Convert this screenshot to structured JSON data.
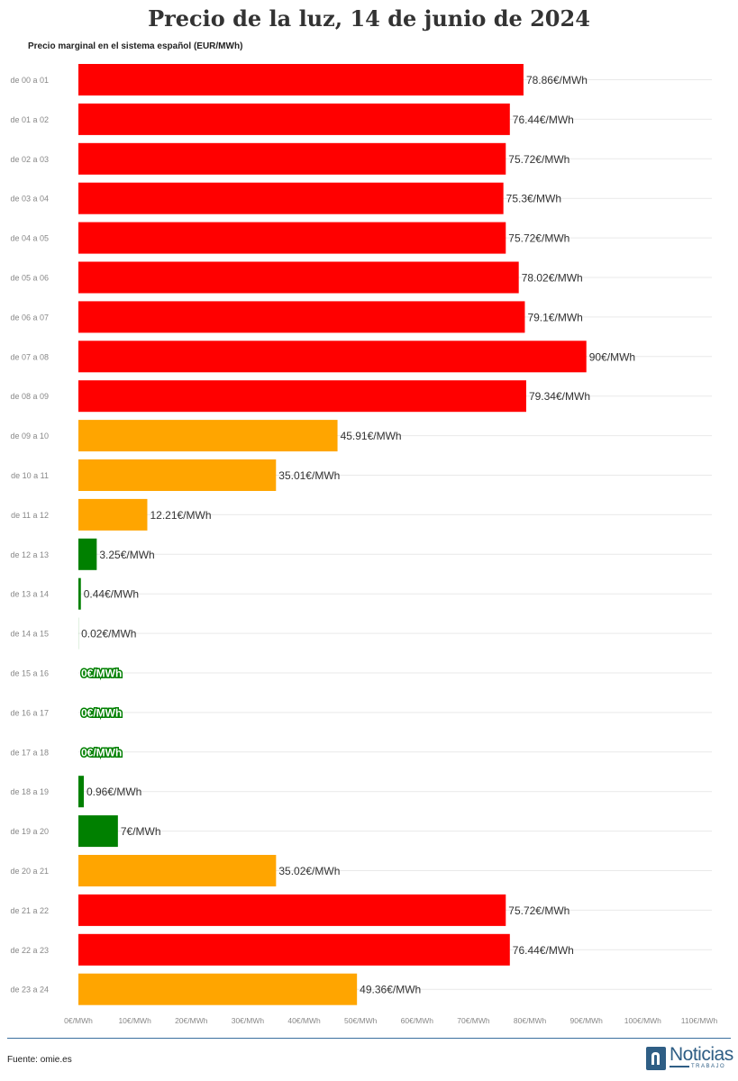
{
  "title": "Precio de la luz, 14 de junio de 2024",
  "subtitle": "Precio marginal en el sistema español (EUR/MWh)",
  "source": "Fuente: omie.es",
  "logo": {
    "word": "Noticias",
    "sub": "TRABAJO"
  },
  "colors": {
    "high": "#ff0000",
    "mid": "#ffa500",
    "low": "#008000",
    "grid": "#e9e9e9"
  },
  "chart_data": {
    "type": "bar",
    "orientation": "horizontal",
    "xlim": [
      0,
      110
    ],
    "x_ticks": [
      "0€/MWh",
      "10€/MWh",
      "20€/MWh",
      "30€/MWh",
      "40€/MWh",
      "50€/MWh",
      "60€/MWh",
      "70€/MWh",
      "80€/MWh",
      "90€/MWh",
      "100€/MWh",
      "110€/MWh"
    ],
    "grid": true,
    "categories": [
      "de 00 a 01",
      "de 01 a 02",
      "de 02 a 03",
      "de 03 a 04",
      "de 04 a 05",
      "de 05 a 06",
      "de 06 a 07",
      "de 07 a 08",
      "de 08 a 09",
      "de 09 a 10",
      "de 10 a 11",
      "de 11 a 12",
      "de 12 a 13",
      "de 13 a 14",
      "de 14 a 15",
      "de 15 a 16",
      "de 16 a 17",
      "de 17 a 18",
      "de 18 a 19",
      "de 19 a 20",
      "de 20 a 21",
      "de 21 a 22",
      "de 22 a 23",
      "de 23 a 24"
    ],
    "values": [
      78.86,
      76.44,
      75.72,
      75.3,
      75.72,
      78.02,
      79.1,
      90,
      79.34,
      45.91,
      35.01,
      12.21,
      3.25,
      0.44,
      0.02,
      0,
      0,
      0,
      0.96,
      7,
      35.02,
      75.72,
      76.44,
      49.36
    ],
    "labels": [
      "78.86€/MWh",
      "76.44€/MWh",
      "75.72€/MWh",
      "75.3€/MWh",
      "75.72€/MWh",
      "78.02€/MWh",
      "79.1€/MWh",
      "90€/MWh",
      "79.34€/MWh",
      "45.91€/MWh",
      "35.01€/MWh",
      "12.21€/MWh",
      "3.25€/MWh",
      "0.44€/MWh",
      "0.02€/MWh",
      "0€/MWh",
      "0€/MWh",
      "0€/MWh",
      "0.96€/MWh",
      "7€/MWh",
      "35.02€/MWh",
      "75.72€/MWh",
      "76.44€/MWh",
      "49.36€/MWh"
    ],
    "bar_colors": [
      "high",
      "high",
      "high",
      "high",
      "high",
      "high",
      "high",
      "high",
      "high",
      "mid",
      "mid",
      "mid",
      "low",
      "low",
      "low",
      "low",
      "low",
      "low",
      "low",
      "low",
      "mid",
      "high",
      "high",
      "mid"
    ]
  }
}
